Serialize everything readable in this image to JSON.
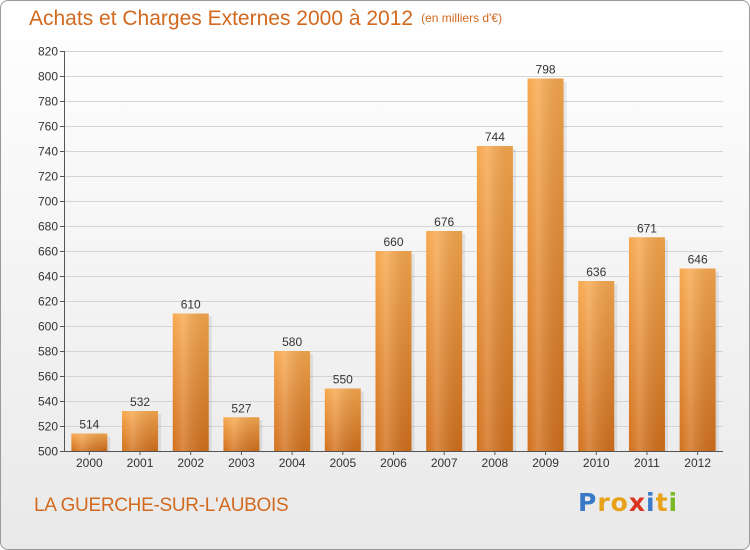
{
  "header": {
    "title": "Achats et Charges Externes 2000 à 2012",
    "unit": "(en milliers d'€)"
  },
  "commune": "LA GUERCHE-SUR-L'AUBOIS",
  "logo": {
    "text": "Proxiti",
    "colors": [
      "#3a78c8",
      "#e8a21a",
      "#e8a21a",
      "#d9351f",
      "#3a78c8",
      "#e8a21a",
      "#7ab827"
    ]
  },
  "colors": {
    "bar_light": "#f7a84e",
    "bar_dark": "#d2701c",
    "text_accent": "#d2691e"
  },
  "chart_data": {
    "type": "bar",
    "categories": [
      "2000",
      "2001",
      "2002",
      "2003",
      "2004",
      "2005",
      "2006",
      "2007",
      "2008",
      "2009",
      "2010",
      "2011",
      "2012"
    ],
    "values": [
      514,
      532,
      610,
      527,
      580,
      550,
      660,
      676,
      744,
      798,
      636,
      671,
      646
    ],
    "ylim": [
      500,
      820
    ],
    "ytick_step": 20,
    "grid": "horizontal",
    "data_labels": true
  }
}
